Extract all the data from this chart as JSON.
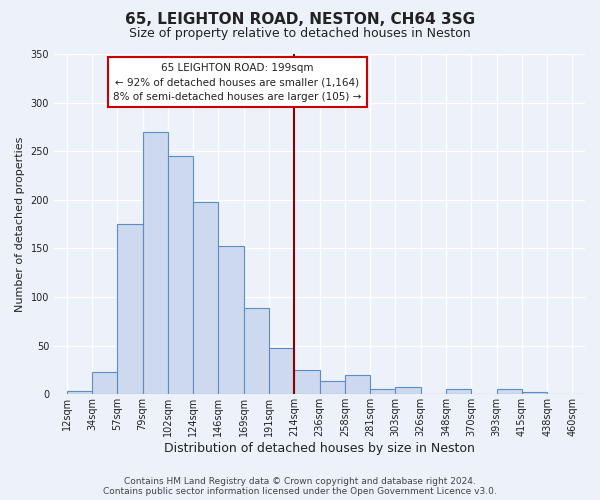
{
  "title": "65, LEIGHTON ROAD, NESTON, CH64 3SG",
  "subtitle": "Size of property relative to detached houses in Neston",
  "xlabel": "Distribution of detached houses by size in Neston",
  "ylabel": "Number of detached properties",
  "bar_labels": [
    "12sqm",
    "34sqm",
    "57sqm",
    "79sqm",
    "102sqm",
    "124sqm",
    "146sqm",
    "169sqm",
    "191sqm",
    "214sqm",
    "236sqm",
    "258sqm",
    "281sqm",
    "303sqm",
    "326sqm",
    "348sqm",
    "370sqm",
    "393sqm",
    "415sqm",
    "438sqm",
    "460sqm"
  ],
  "bar_heights": [
    3,
    23,
    175,
    270,
    245,
    198,
    153,
    89,
    48,
    25,
    14,
    20,
    5,
    7,
    0,
    5,
    0,
    5,
    2,
    0,
    0
  ],
  "bar_color": "#ccd9ee",
  "bar_edge_color": "#5b8ec4",
  "ylim": [
    0,
    350
  ],
  "yticks": [
    0,
    50,
    100,
    150,
    200,
    250,
    300,
    350
  ],
  "vline_color": "#8b0000",
  "annotation_text": "65 LEIGHTON ROAD: 199sqm\n← 92% of detached houses are smaller (1,164)\n8% of semi-detached houses are larger (105) →",
  "footer_line1": "Contains HM Land Registry data © Crown copyright and database right 2024.",
  "footer_line2": "Contains public sector information licensed under the Open Government Licence v3.0.",
  "background_color": "#edf1f9",
  "plot_bg_color": "#edf1f9",
  "title_fontsize": 11,
  "subtitle_fontsize": 9,
  "xlabel_fontsize": 9,
  "ylabel_fontsize": 8,
  "tick_fontsize": 7,
  "footer_fontsize": 6.5,
  "annotation_fontsize": 7.5
}
